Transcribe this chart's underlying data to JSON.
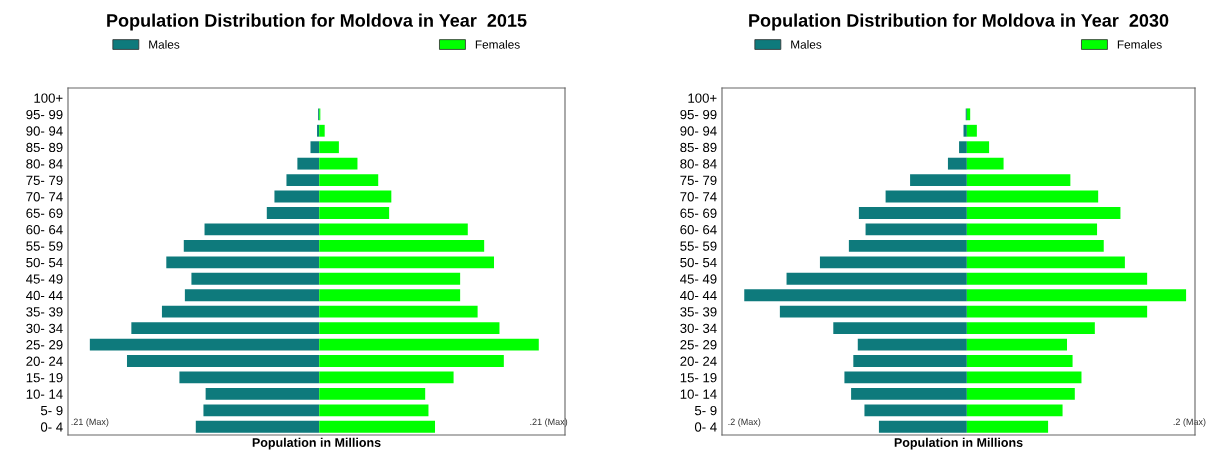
{
  "chart_data": [
    {
      "type": "bar",
      "orientation": "horizontal",
      "stacked": true,
      "title": "Population Distribution for Moldova in Year  2015",
      "xlabel": "Population in Millions",
      "legend": "top",
      "categories": [
        "100+",
        "95- 99",
        "90- 94",
        "85- 89",
        "80- 84",
        "75- 79",
        "70- 74",
        "65- 69",
        "60- 64",
        "55- 59",
        "50- 54",
        "45- 49",
        "40- 44",
        "35- 39",
        "30- 34",
        "25- 29",
        "20- 24",
        "15- 19",
        "10- 14",
        "5- 9",
        "0- 4"
      ],
      "series": [
        {
          "name": "Males",
          "color": "#0e7a7c",
          "values": [
            0,
            -0.001,
            -0.002,
            -0.008,
            -0.02,
            -0.03,
            -0.041,
            -0.048,
            -0.105,
            -0.124,
            -0.14,
            -0.117,
            -0.123,
            -0.144,
            -0.172,
            -0.21,
            -0.176,
            -0.128,
            -0.104,
            -0.106,
            -0.113
          ]
        },
        {
          "name": "Females",
          "color": "#00ff00",
          "values": [
            0,
            0.001,
            0.005,
            0.018,
            0.035,
            0.054,
            0.066,
            0.064,
            0.136,
            0.151,
            0.16,
            0.129,
            0.129,
            0.145,
            0.165,
            0.201,
            0.169,
            0.123,
            0.097,
            0.1,
            0.106
          ]
        }
      ],
      "xlim": [
        -0.23,
        0.225
      ],
      "xticks": [
        {
          "value": -0.21,
          "label": ".21 (Max)"
        },
        {
          "value": 0.21,
          "label": ".21 (Max)"
        }
      ]
    },
    {
      "type": "bar",
      "orientation": "horizontal",
      "stacked": true,
      "title": "Population Distribution for Moldova in Year  2030",
      "xlabel": "Population in Millions",
      "legend": "top",
      "categories": [
        "100+",
        "95- 99",
        "90- 94",
        "85- 89",
        "80- 84",
        "75- 79",
        "70- 74",
        "65- 69",
        "60- 64",
        "55- 59",
        "50- 54",
        "45- 49",
        "40- 44",
        "35- 39",
        "30- 34",
        "25- 29",
        "20- 24",
        "15- 19",
        "10- 14",
        "5- 9",
        "0- 4"
      ],
      "series": [
        {
          "name": "Males",
          "color": "#0e7a7c",
          "values": [
            0,
            -0.001,
            -0.003,
            -0.007,
            -0.017,
            -0.051,
            -0.073,
            -0.097,
            -0.091,
            -0.106,
            -0.132,
            -0.162,
            -0.2,
            -0.168,
            -0.12,
            -0.098,
            -0.102,
            -0.11,
            -0.104,
            -0.092,
            -0.079
          ]
        },
        {
          "name": "Females",
          "color": "#00ff00",
          "values": [
            0,
            0.003,
            0.009,
            0.02,
            0.033,
            0.093,
            0.118,
            0.138,
            0.117,
            0.123,
            0.142,
            0.162,
            0.197,
            0.162,
            0.115,
            0.09,
            0.095,
            0.103,
            0.097,
            0.086,
            0.073
          ]
        }
      ],
      "xlim": [
        -0.22,
        0.205
      ],
      "xticks": [
        {
          "value": -0.2,
          "label": ".2 (Max)"
        },
        {
          "value": 0.2,
          "label": ".2 (Max)"
        }
      ]
    }
  ]
}
